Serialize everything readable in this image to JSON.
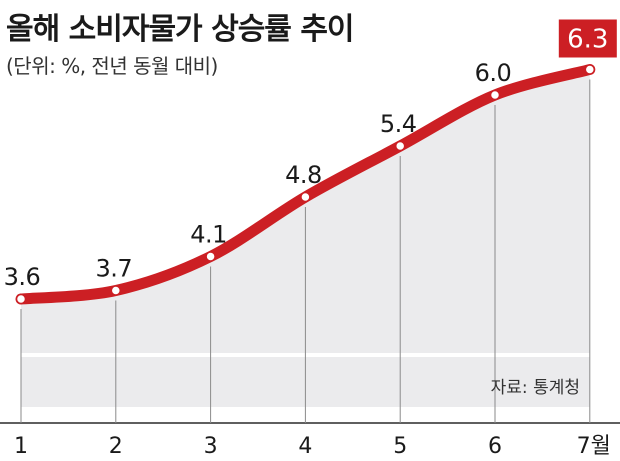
{
  "title": "올해 소비자물가 상승률 추이",
  "subtitle": "(단위: %, 전년 동월 대비)",
  "source": "자료: 통계청",
  "chart_data": {
    "type": "area",
    "categories": [
      "1",
      "2",
      "3",
      "4",
      "5",
      "6",
      "7월"
    ],
    "values": [
      3.6,
      3.7,
      4.1,
      4.8,
      5.4,
      6.0,
      6.3
    ],
    "value_labels": [
      "3.6",
      "3.7",
      "4.1",
      "4.8",
      "5.4",
      "6.0",
      "6.3"
    ],
    "title": "올해 소비자물가 상승률 추이",
    "subtitle": "(단위: %, 전년 동월 대비)",
    "xlabel": "",
    "ylabel": "",
    "grid": false,
    "line_color": "#cc1f24",
    "fill_color": "#ebebed",
    "highlight_color": "#cc1f24"
  }
}
